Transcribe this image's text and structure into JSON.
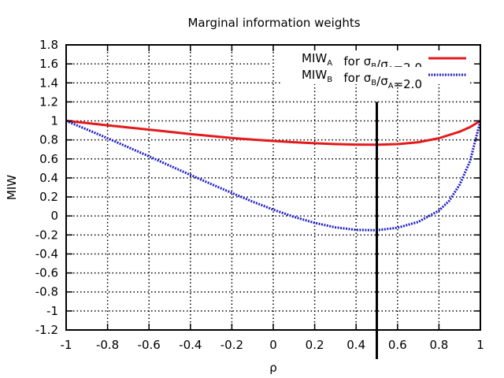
{
  "chart_data": {
    "type": "line",
    "title": "Marginal information weights",
    "xlabel": "ρ",
    "ylabel": "MIW",
    "xlim": [
      -1,
      1
    ],
    "ylim": [
      -1.2,
      1.8
    ],
    "xticks": [
      "-1",
      "-0.8",
      "-0.6",
      "-0.4",
      "-0.2",
      "0",
      "0.2",
      "0.4",
      "0.6",
      "0.8",
      "1"
    ],
    "yticks": [
      "1.8",
      "1.6",
      "1.4",
      "1.2",
      "1",
      "0.8",
      "0.6",
      "0.4",
      "0.2",
      "0",
      "-0.2",
      "-0.4",
      "-0.6",
      "-0.8",
      "-1",
      "-1.2"
    ],
    "grid": true,
    "vertical_marker": {
      "x": 0.5,
      "y_range": [
        -1.5,
        1.2
      ],
      "color": "#000000"
    },
    "series": [
      {
        "name": "MIW_A",
        "legend": {
          "main": "MIW",
          "sub": "A",
          "condition": "for σ",
          "cond_sub1": "B",
          "mid": "/σ",
          "cond_sub2": "A",
          "tail": "=2.0"
        },
        "color": "#e41a1c",
        "style": "solid",
        "x": [
          -1.0,
          -0.9,
          -0.8,
          -0.7,
          -0.6,
          -0.5,
          -0.4,
          -0.3,
          -0.2,
          -0.1,
          0.0,
          0.1,
          0.2,
          0.3,
          0.4,
          0.5,
          0.6,
          0.7,
          0.8,
          0.9,
          0.95,
          1.0
        ],
        "y": [
          1.0,
          0.977,
          0.954,
          0.931,
          0.908,
          0.885,
          0.862,
          0.84,
          0.82,
          0.803,
          0.789,
          0.776,
          0.765,
          0.756,
          0.751,
          0.75,
          0.756,
          0.776,
          0.818,
          0.887,
          0.935,
          1.0
        ]
      },
      {
        "name": "MIW_B",
        "legend": {
          "main": "MIW",
          "sub": "B",
          "condition": "for σ",
          "cond_sub1": "B",
          "mid": "/σ",
          "cond_sub2": "A",
          "tail": "=2.0"
        },
        "color": "#1f1fc8",
        "style": "dotted",
        "x": [
          -1.0,
          -0.9,
          -0.8,
          -0.7,
          -0.6,
          -0.5,
          -0.4,
          -0.3,
          -0.2,
          -0.1,
          0.0,
          0.1,
          0.2,
          0.3,
          0.4,
          0.5,
          0.6,
          0.7,
          0.8,
          0.85,
          0.9,
          0.95,
          1.0
        ],
        "y": [
          1.0,
          0.91,
          0.818,
          0.723,
          0.627,
          0.529,
          0.432,
          0.336,
          0.242,
          0.151,
          0.066,
          -0.01,
          -0.073,
          -0.12,
          -0.147,
          -0.15,
          -0.124,
          -0.063,
          0.056,
          0.16,
          0.329,
          0.577,
          1.0
        ]
      }
    ]
  }
}
